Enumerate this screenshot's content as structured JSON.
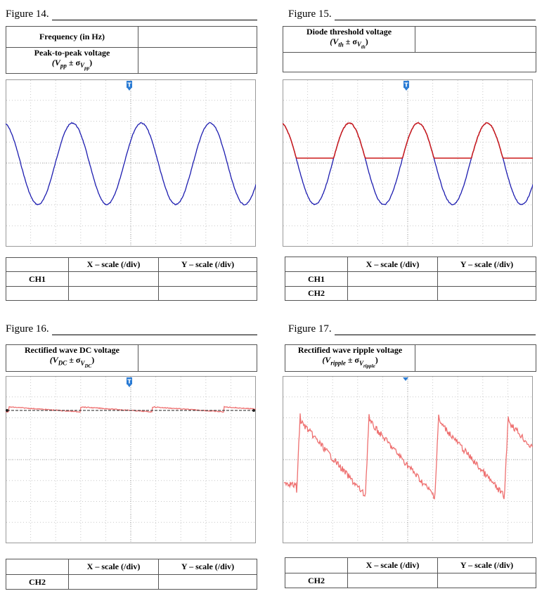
{
  "figures": [
    {
      "title": "Figure 14.",
      "top_table": {
        "row1": "Frequency (in Hz)",
        "row2": "Peak-to-peak voltage",
        "row2_symbol": "(V",
        "row2_sub": "pp",
        "row2_pm": " ± σ",
        "row2_subsub": "V",
        "row2_subsubsub": "pp",
        "row2_close": ")"
      },
      "scale_table": {
        "x_header": "X – scale (/div)",
        "y_header": "Y – scale (/div)",
        "channels": [
          "CH1"
        ]
      },
      "trace_colors": [
        "#1d1db0"
      ],
      "trigger_marker": "T"
    },
    {
      "title": "Figure 15.",
      "top_table": {
        "row1": "Diode threshold voltage",
        "row1_symbol": "(V",
        "row1_sub": "th",
        "row1_pm": " ± σ",
        "row1_subsub": "V",
        "row1_subsubsub": "th",
        "row1_close": ")"
      },
      "scale_table": {
        "x_header": "X – scale (/div)",
        "y_header": "Y – scale (/div)",
        "channels": [
          "CH1",
          "CH2"
        ]
      },
      "trace_colors": [
        "#1d1db0",
        "#cc1a1a"
      ],
      "trigger_marker": "T"
    },
    {
      "title": "Figure 16.",
      "top_table": {
        "row1": "Rectified wave DC voltage",
        "row1_symbol": "(V",
        "row1_sub": "DC",
        "row1_pm": " ± σ",
        "row1_subsub": "V",
        "row1_subsubsub": "DC",
        "row1_close": ")"
      },
      "scale_table": {
        "x_header": "X – scale (/div)",
        "y_header": "Y – scale (/div)",
        "channels": [
          "CH2"
        ]
      },
      "trace_colors": [
        "#ee7070"
      ],
      "trigger_marker": "T"
    },
    {
      "title": "Figure 17.",
      "top_table": {
        "row1": "Rectified wave ripple voltage",
        "row1_symbol": "(V",
        "row1_sub": "ripple",
        "row1_pm": " ± σ",
        "row1_subsub": "V",
        "row1_subsubsub": "ripple",
        "row1_close": ")"
      },
      "scale_table": {
        "x_header": "X – scale (/div)",
        "y_header": "Y – scale (/div)",
        "channels": [
          "CH2"
        ]
      },
      "trace_colors": [
        "#ee7070"
      ]
    }
  ]
}
